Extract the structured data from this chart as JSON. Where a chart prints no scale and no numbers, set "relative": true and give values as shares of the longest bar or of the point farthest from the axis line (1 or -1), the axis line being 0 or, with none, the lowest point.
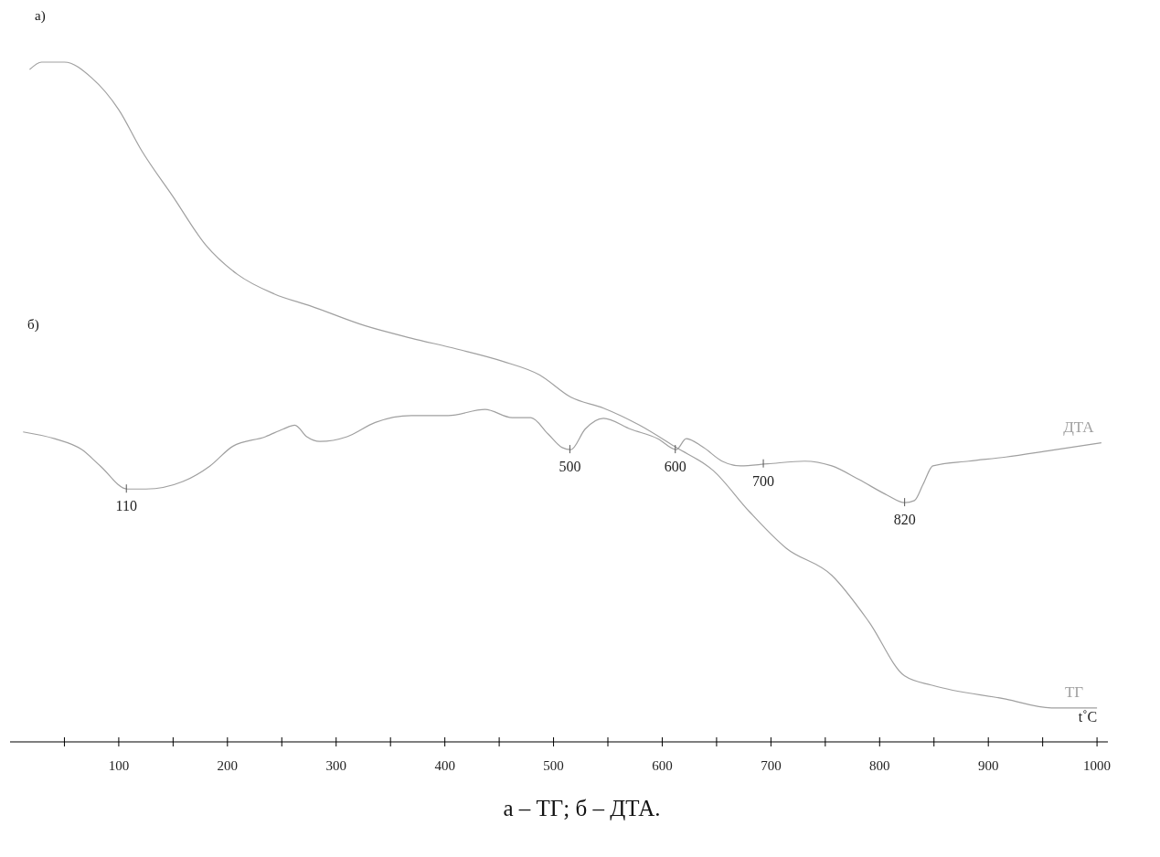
{
  "chart_data": {
    "type": "line",
    "relative": true,
    "tick_labels": "x",
    "xlabel": "t˚C",
    "xlim": [
      0,
      1010
    ],
    "xticks": [
      {
        "value": 50,
        "label": null
      },
      100,
      {
        "value": 150,
        "label": null
      },
      200,
      {
        "value": 250,
        "label": null
      },
      300,
      {
        "value": 350,
        "label": null
      },
      400,
      {
        "value": 450,
        "label": null
      },
      500,
      {
        "value": 550,
        "label": null
      },
      600,
      {
        "value": 650,
        "label": null
      },
      700,
      {
        "value": 750,
        "label": null
      },
      800,
      {
        "value": 850,
        "label": null
      },
      900,
      {
        "value": 950,
        "label": null
      },
      1000
    ],
    "grid": false,
    "line_style": "solid",
    "series": [
      {
        "name": "ДТА",
        "color": "#a0a0a0",
        "x": [
          12,
          41,
          66,
          83,
          108,
          125,
          159,
          184,
          205,
          235,
          251,
          262,
          273,
          285,
          310,
          336,
          369,
          403,
          437,
          462,
          479,
          495,
          508,
          516,
          529,
          546,
          571,
          596,
          613,
          622,
          638,
          655,
          672,
          697,
          731,
          756,
          781,
          807,
          823,
          832,
          840,
          849,
          882,
          916,
          958,
          1004
        ],
        "values": [
          0.456,
          0.446,
          0.43,
          0.406,
          0.372,
          0.372,
          0.383,
          0.406,
          0.435,
          0.449,
          0.46,
          0.466,
          0.449,
          0.442,
          0.449,
          0.47,
          0.48,
          0.48,
          0.489,
          0.477,
          0.477,
          0.453,
          0.433,
          0.43,
          0.46,
          0.476,
          0.46,
          0.446,
          0.43,
          0.446,
          0.433,
          0.413,
          0.406,
          0.409,
          0.413,
          0.406,
          0.386,
          0.363,
          0.352,
          0.355,
          0.379,
          0.406,
          0.413,
          0.419,
          0.429,
          0.44
        ]
      },
      {
        "name": "ТГ",
        "color": "#a0a0a0",
        "x": [
          18,
          29,
          50,
          75,
          100,
          121,
          150,
          180,
          209,
          243,
          277,
          327,
          369,
          411,
          453,
          487,
          516,
          546,
          579,
          613,
          647,
          680,
          714,
          756,
          790,
          823,
          849,
          916,
          958,
          1000
        ],
        "values": [
          0.989,
          1.0,
          1.0,
          0.977,
          0.93,
          0.87,
          0.802,
          0.731,
          0.688,
          0.659,
          0.641,
          0.612,
          0.594,
          0.578,
          0.56,
          0.54,
          0.507,
          0.491,
          0.466,
          0.433,
          0.399,
          0.339,
          0.285,
          0.245,
          0.177,
          0.097,
          0.083,
          0.063,
          0.05,
          0.05
        ]
      }
    ],
    "annotations": [
      "а)",
      "б)",
      "а – ТГ; б – ДТА.",
      {
        "text": "110",
        "x": 107,
        "y": 0.372
      },
      {
        "text": "500",
        "x": 515,
        "y": 0.43
      },
      {
        "text": "600",
        "x": 612,
        "y": 0.43
      },
      {
        "text": "700",
        "x": 693,
        "y": 0.409
      },
      {
        "text": "820",
        "x": 823,
        "y": 0.352
      }
    ]
  }
}
